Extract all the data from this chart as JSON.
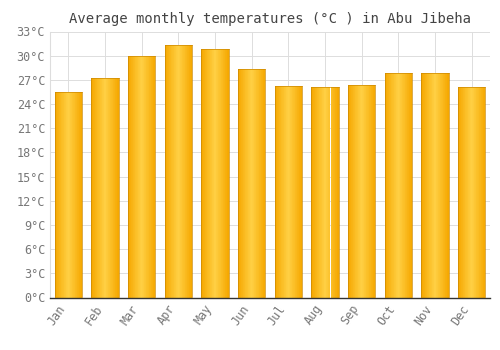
{
  "title": "Average monthly temperatures (°C ) in Abu Jibeha",
  "months": [
    "Jan",
    "Feb",
    "Mar",
    "Apr",
    "May",
    "Jun",
    "Jul",
    "Aug",
    "Sep",
    "Oct",
    "Nov",
    "Dec"
  ],
  "values": [
    25.5,
    27.2,
    30.0,
    31.3,
    30.8,
    28.3,
    26.3,
    26.1,
    26.4,
    27.9,
    27.8,
    26.1
  ],
  "bar_color_center": "#FFD045",
  "bar_color_edge": "#F5A800",
  "background_color": "#FFFFFF",
  "grid_color": "#DDDDDD",
  "text_color": "#777777",
  "ylim": [
    0,
    33
  ],
  "yticks": [
    0,
    3,
    6,
    9,
    12,
    15,
    18,
    21,
    24,
    27,
    30,
    33
  ],
  "title_fontsize": 10,
  "tick_fontsize": 8.5,
  "bar_width": 0.75
}
